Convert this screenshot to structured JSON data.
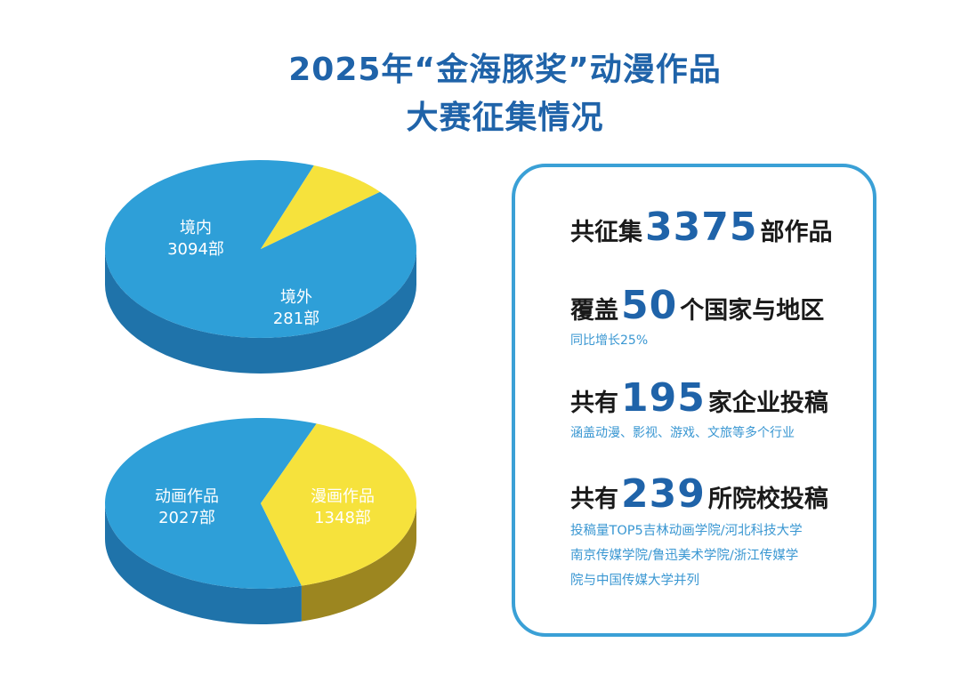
{
  "title": {
    "line1": "2025年“金海豚奖”动漫作品",
    "line2": "大赛征集情况"
  },
  "colors": {
    "blue": "#2e9fd8",
    "blue_dark": "#1f73aa",
    "yellow": "#f6e23c",
    "yellow_dark": "#9c8620",
    "title": "#1f63a9",
    "accent": "#3aa0d6"
  },
  "chart_data": [
    {
      "type": "pie",
      "categories": [
        "境内",
        "境外"
      ],
      "values": [
        3094,
        281
      ],
      "labels": [
        {
          "name": "境内",
          "value": "3094部"
        },
        {
          "name": "境外",
          "value": "281部"
        }
      ]
    },
    {
      "type": "pie",
      "categories": [
        "动画作品",
        "漫画作品"
      ],
      "values": [
        2027,
        1348
      ],
      "labels": [
        {
          "name": "动画作品",
          "value": "2027部"
        },
        {
          "name": "漫画作品",
          "value": "1348部"
        }
      ]
    }
  ],
  "stats": {
    "total": {
      "prefix": "共征集",
      "number": "3375",
      "suffix": "部作品"
    },
    "countries": {
      "prefix": "覆盖",
      "number": "50",
      "suffix": "个国家与地区",
      "note": "同比增长25%"
    },
    "companies": {
      "prefix": "共有",
      "number": "195",
      "suffix": "家企业投稿",
      "note": "涵盖动漫、影视、游戏、文旅等多个行业"
    },
    "schools": {
      "prefix": "共有",
      "number": "239",
      "suffix": "所院校投稿",
      "note_lines": [
        "投稿量TOP5吉林动画学院/河北科技大学",
        "南京传媒学院/鲁迅美术学院/浙江传媒学",
        "院与中国传媒大学并列"
      ]
    }
  }
}
